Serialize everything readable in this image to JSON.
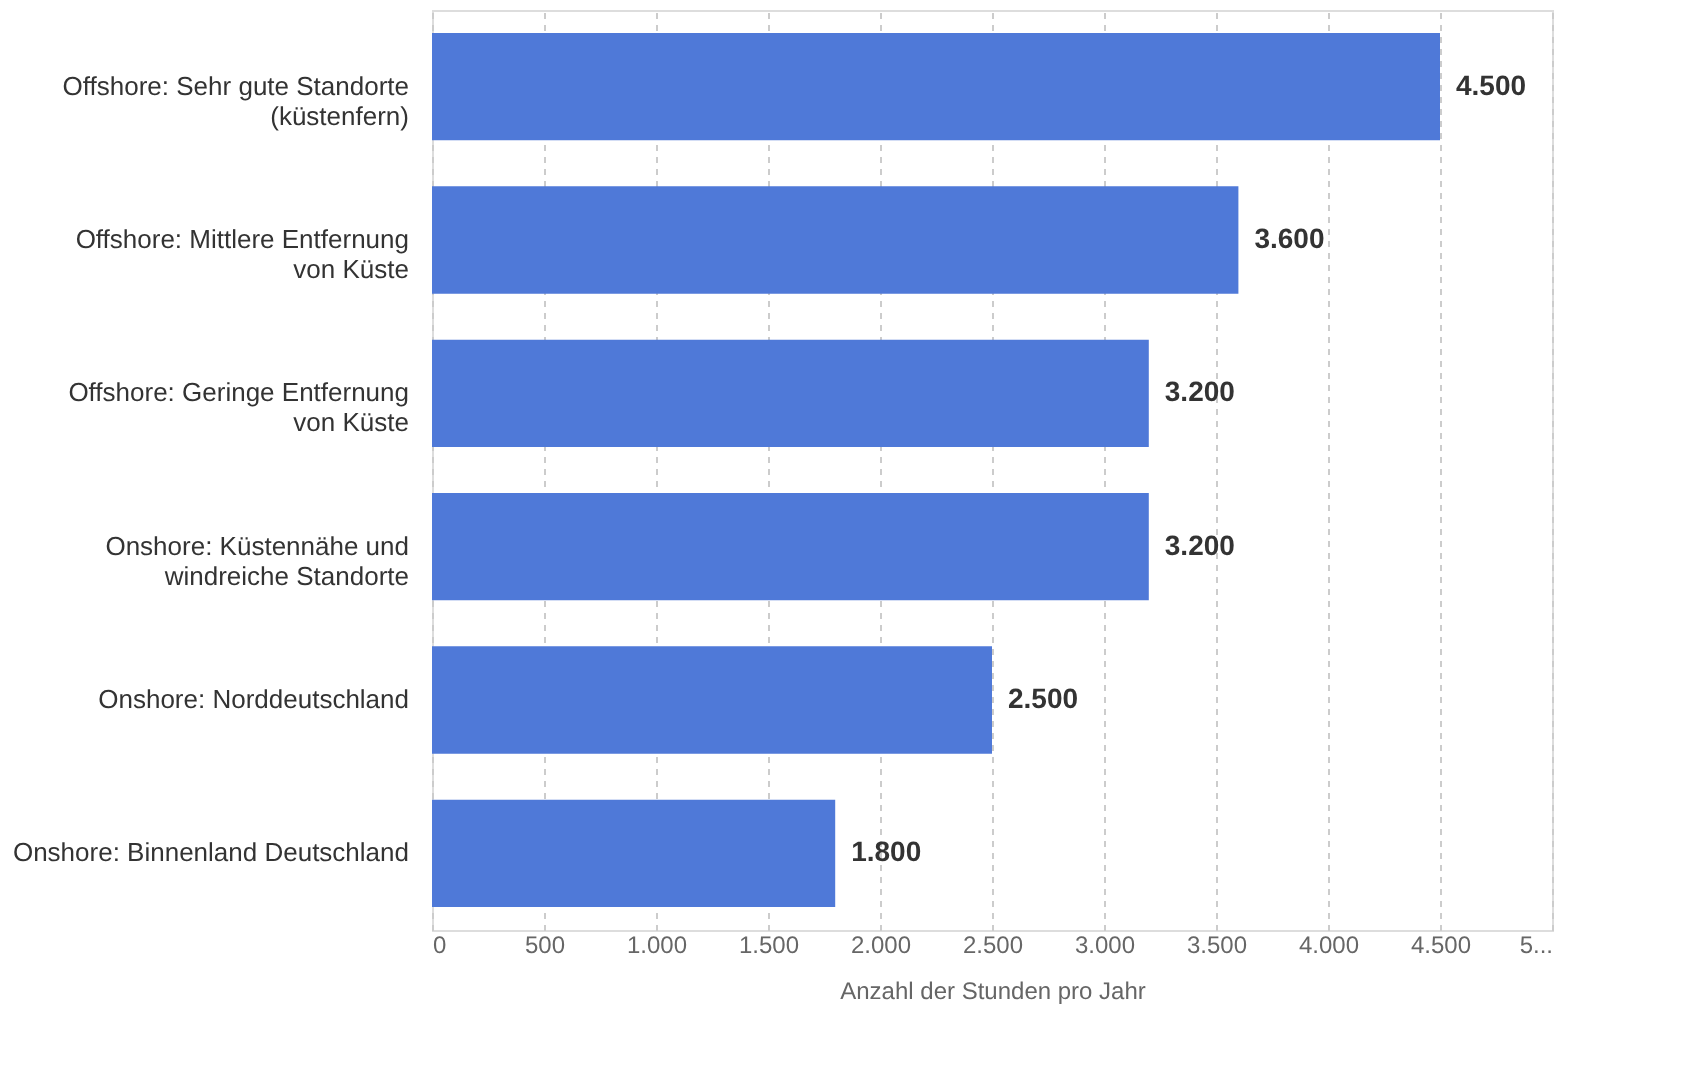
{
  "chart_data": {
    "type": "bar",
    "orientation": "horizontal",
    "categories": [
      "Offshore: Sehr gute Standorte (küstenfern)",
      "Offshore: Mittlere Entfernung von Küste",
      "Offshore: Geringe Entfernung von Küste",
      "Onshore: Küstennähe und windreiche Standorte",
      "Onshore: Norddeutschland",
      "Onshore: Binnenland Deutschland"
    ],
    "values": [
      4500,
      3600,
      3200,
      3200,
      2500,
      1800
    ],
    "color": "#4f79d8",
    "xlabel": "Anzahl der Stunden pro Jahr",
    "xlim": [
      0,
      5000
    ],
    "xticks": [
      {
        "value": 0,
        "label": "0"
      },
      {
        "value": 500,
        "label": "500"
      },
      {
        "value": 1000,
        "label": "1.000"
      },
      {
        "value": 1500,
        "label": "1.500"
      },
      {
        "value": 2000,
        "label": "2.000"
      },
      {
        "value": 2500,
        "label": "2.500"
      },
      {
        "value": 3000,
        "label": "3.000"
      },
      {
        "value": 3500,
        "label": "3.500"
      },
      {
        "value": 4000,
        "label": "4.000"
      },
      {
        "value": 4500,
        "label": "4.500"
      },
      {
        "value": 5000,
        "label": "5..."
      }
    ],
    "grid": "x",
    "value_labels": [
      "4.500",
      "3.600",
      "3.200",
      "3.200",
      "2.500",
      "1.800"
    ]
  }
}
